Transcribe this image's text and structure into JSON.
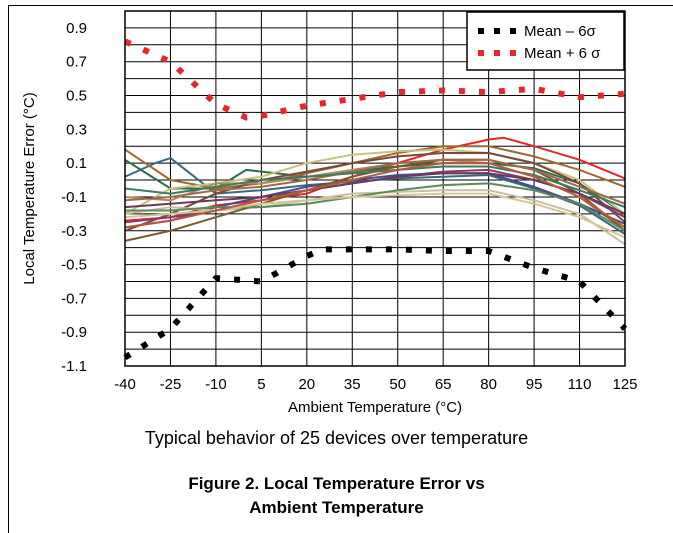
{
  "chart_data": {
    "type": "line",
    "xlabel": "Ambient Temperature (°C)",
    "ylabel": "Local Temperature Error (°C)",
    "xlim": [
      -40,
      125
    ],
    "ylim": [
      -1.1,
      1.0
    ],
    "x_ticks": [
      -40,
      -25,
      -10,
      5,
      20,
      35,
      50,
      65,
      80,
      95,
      110,
      125
    ],
    "x_tick_labels": [
      "-40",
      "-25",
      "-10",
      "5",
      "20",
      "35",
      "50",
      "65",
      "80",
      "95",
      "110",
      "125"
    ],
    "y_ticks": [
      0.9,
      0.7,
      0.5,
      0.3,
      0.1,
      -0.1,
      -0.3,
      -0.5,
      -0.7,
      -0.9,
      -1.1
    ],
    "y_tick_labels": [
      "0.9",
      "0.7",
      "0.5",
      "0.3",
      "0.1",
      "-0.1",
      "-0.3",
      "-0.5",
      "-0.7",
      "-0.9",
      "-1.1"
    ],
    "grid": true,
    "legend_position": "top-right",
    "series": [
      {
        "name": "Mean – 6σ",
        "style": "dotted",
        "color": "#000000",
        "x": [
          -40,
          -25,
          -10,
          5,
          20,
          25,
          35,
          50,
          65,
          80,
          95,
          110,
          125
        ],
        "y": [
          -1.05,
          -0.88,
          -0.58,
          -0.6,
          -0.45,
          -0.41,
          -0.41,
          -0.41,
          -0.42,
          -0.42,
          -0.52,
          -0.6,
          -0.88
        ]
      },
      {
        "name": "Mean + 6 σ",
        "style": "dotted",
        "color": "#e8262a",
        "x": [
          -40,
          -25,
          -10,
          0,
          5,
          20,
          35,
          50,
          65,
          80,
          95,
          110,
          125
        ],
        "y": [
          0.82,
          0.7,
          0.45,
          0.37,
          0.38,
          0.44,
          0.48,
          0.52,
          0.53,
          0.52,
          0.54,
          0.49,
          0.51
        ]
      },
      {
        "color": "#e8262a",
        "x": [
          -40,
          -25,
          -10,
          5,
          20,
          35,
          50,
          65,
          80,
          85,
          95,
          110,
          125
        ],
        "y": [
          -0.24,
          -0.22,
          -0.15,
          -0.12,
          -0.08,
          0.02,
          0.1,
          0.18,
          0.24,
          0.25,
          0.2,
          0.12,
          0.01
        ]
      },
      {
        "color": "#2e6e46",
        "x": [
          -40,
          -25,
          -10,
          0,
          20,
          35,
          50,
          65,
          80,
          95,
          110,
          125
        ],
        "y": [
          0.12,
          -0.05,
          -0.05,
          0.06,
          0.02,
          0.05,
          0.08,
          0.1,
          0.1,
          0.07,
          -0.02,
          -0.2
        ]
      },
      {
        "color": "#3a6a7e",
        "x": [
          -40,
          -30,
          -25,
          -10,
          5,
          20,
          35,
          50,
          65,
          80,
          95,
          110,
          125
        ],
        "y": [
          0.02,
          0.1,
          0.13,
          -0.08,
          -0.06,
          -0.03,
          -0.01,
          0.01,
          0.02,
          0.03,
          -0.05,
          -0.15,
          -0.32
        ]
      },
      {
        "color": "#9e6a2c",
        "x": [
          -40,
          -25,
          -10,
          5,
          20,
          35,
          50,
          65,
          80,
          95,
          110,
          125
        ],
        "y": [
          0.18,
          0.0,
          -0.05,
          -0.02,
          0.04,
          0.1,
          0.16,
          0.2,
          0.2,
          0.14,
          0.06,
          -0.04
        ]
      },
      {
        "color": "#c9c27a",
        "x": [
          -40,
          -25,
          -10,
          5,
          20,
          35,
          50,
          65,
          80,
          95,
          110,
          125
        ],
        "y": [
          -0.2,
          -0.05,
          -0.02,
          0.02,
          0.1,
          0.15,
          0.17,
          0.18,
          0.16,
          0.1,
          0.0,
          -0.2
        ]
      },
      {
        "color": "#7a4a36",
        "x": [
          -40,
          -25,
          -10,
          5,
          20,
          35,
          50,
          65,
          80,
          95,
          110,
          125
        ],
        "y": [
          -0.3,
          -0.2,
          -0.08,
          0.0,
          0.05,
          0.1,
          0.14,
          0.16,
          0.16,
          0.1,
          -0.02,
          -0.25
        ]
      },
      {
        "color": "#8a3a6e",
        "x": [
          -40,
          -25,
          -10,
          5,
          20,
          35,
          50,
          65,
          80,
          95,
          110,
          125
        ],
        "y": [
          -0.25,
          -0.22,
          -0.18,
          -0.12,
          -0.06,
          -0.02,
          0.02,
          0.05,
          0.06,
          0.0,
          -0.08,
          -0.22
        ]
      },
      {
        "color": "#b38b5a",
        "x": [
          -40,
          -25,
          -10,
          5,
          20,
          35,
          50,
          65,
          80,
          95,
          110,
          125
        ],
        "y": [
          -0.1,
          -0.12,
          -0.02,
          -0.02,
          0.02,
          0.06,
          0.1,
          0.12,
          0.1,
          0.02,
          -0.1,
          -0.3
        ]
      },
      {
        "color": "#4a4a8e",
        "x": [
          -40,
          -25,
          -10,
          5,
          20,
          35,
          50,
          65,
          80,
          95,
          110,
          125
        ],
        "y": [
          -0.28,
          -0.24,
          -0.16,
          -0.1,
          -0.04,
          0.0,
          0.03,
          0.04,
          0.04,
          -0.04,
          -0.14,
          -0.26
        ]
      },
      {
        "color": "#c8bfa0",
        "x": [
          -40,
          -25,
          -10,
          5,
          20,
          35,
          50,
          65,
          80,
          95,
          110,
          125
        ],
        "y": [
          -0.2,
          -0.16,
          -0.18,
          -0.16,
          -0.12,
          -0.08,
          -0.07,
          -0.06,
          -0.06,
          -0.12,
          -0.2,
          -0.38
        ]
      },
      {
        "color": "#7a5a2a",
        "x": [
          -40,
          -25,
          -10,
          5,
          20,
          35,
          50,
          65,
          80,
          95,
          110,
          125
        ],
        "y": [
          -0.36,
          -0.3,
          -0.22,
          -0.14,
          -0.06,
          0.02,
          0.08,
          0.12,
          0.12,
          0.06,
          -0.08,
          -0.3
        ]
      },
      {
        "color": "#5a8a5a",
        "x": [
          -40,
          -25,
          -10,
          5,
          20,
          35,
          50,
          65,
          80,
          95,
          110,
          125
        ],
        "y": [
          -0.18,
          -0.18,
          -0.16,
          -0.16,
          -0.14,
          -0.1,
          -0.06,
          -0.03,
          -0.02,
          -0.06,
          -0.14,
          -0.3
        ]
      },
      {
        "color": "#a06a4a",
        "x": [
          -40,
          -25,
          -10,
          5,
          20,
          35,
          50,
          65,
          80,
          95,
          110,
          125
        ],
        "y": [
          -0.12,
          -0.1,
          -0.06,
          -0.04,
          0.0,
          0.05,
          0.1,
          0.12,
          0.12,
          0.06,
          -0.04,
          -0.14
        ]
      },
      {
        "color": "#d4c690",
        "x": [
          -40,
          -25,
          -10,
          5,
          20,
          35,
          50,
          65,
          80,
          95,
          110,
          125
        ],
        "y": [
          -0.22,
          -0.2,
          -0.18,
          -0.14,
          -0.12,
          -0.1,
          -0.09,
          -0.08,
          -0.08,
          -0.14,
          -0.22,
          -0.34
        ]
      },
      {
        "color": "#6a3a5a",
        "x": [
          -40,
          -25,
          -10,
          5,
          20,
          35,
          50,
          65,
          80,
          95,
          110,
          125
        ],
        "y": [
          -0.16,
          -0.14,
          -0.12,
          -0.1,
          -0.06,
          -0.02,
          0.02,
          0.04,
          0.04,
          0.0,
          -0.08,
          -0.2
        ]
      },
      {
        "color": "#3e7a5e",
        "x": [
          -40,
          -25,
          -10,
          5,
          20,
          35,
          50,
          65,
          80,
          95,
          110,
          125
        ],
        "y": [
          -0.05,
          -0.08,
          -0.04,
          0.0,
          0.02,
          0.04,
          0.06,
          0.08,
          0.08,
          0.03,
          -0.06,
          -0.16
        ]
      },
      {
        "color": "#b85a3a",
        "x": [
          -40,
          -25,
          -10,
          5,
          20,
          35,
          50,
          65,
          80,
          95,
          110,
          125
        ],
        "y": [
          -0.28,
          -0.24,
          -0.18,
          -0.12,
          -0.06,
          0.0,
          0.06,
          0.1,
          0.1,
          0.02,
          -0.1,
          -0.28
        ]
      }
    ]
  },
  "caption": "Typical behavior of 25 devices over temperature",
  "figure_title_line1": "Figure 2. Local Temperature Error vs",
  "figure_title_line2": "Ambient Temperature"
}
